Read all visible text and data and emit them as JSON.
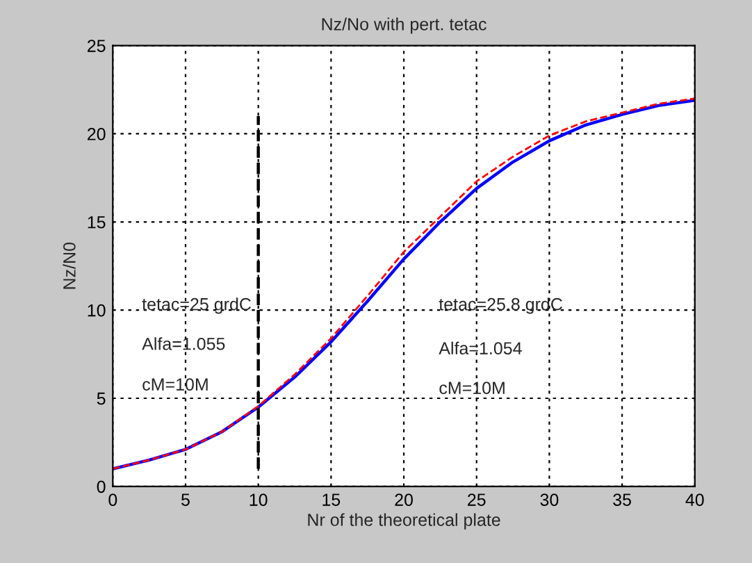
{
  "chart_data": {
    "type": "line",
    "title": "Nz/No with pert. tetac",
    "xlabel": "Nr of the theoretical plate",
    "ylabel": "Nz/N0",
    "xlim": [
      0,
      40
    ],
    "xticks": [
      0,
      5,
      10,
      15,
      20,
      25,
      30,
      35,
      40
    ],
    "ylim": [
      0,
      25
    ],
    "yticks": [
      0,
      5,
      10,
      15,
      20,
      25
    ],
    "grid": true,
    "series": [
      {
        "color": "#0000ff",
        "line_style": "solid",
        "x": [
          0,
          2.5,
          5,
          7.5,
          10,
          12.5,
          15,
          17.5,
          20,
          22.5,
          25,
          27.5,
          30,
          32.5,
          35,
          37.5,
          40
        ],
        "values": [
          1.0,
          1.5,
          2.1,
          3.1,
          4.5,
          6.2,
          8.2,
          10.5,
          12.9,
          15.0,
          16.9,
          18.4,
          19.6,
          20.5,
          21.1,
          21.6,
          21.9
        ]
      },
      {
        "color": "#ff0000",
        "line_style": "dashed",
        "x": [
          0,
          2.5,
          5,
          7.5,
          10,
          12.5,
          15,
          17.5,
          20,
          22.5,
          25,
          27.5,
          30,
          32.5,
          35,
          37.5,
          40
        ],
        "values": [
          1.0,
          1.5,
          2.1,
          3.1,
          4.55,
          6.35,
          8.4,
          10.8,
          13.3,
          15.3,
          17.3,
          18.7,
          19.9,
          20.7,
          21.2,
          21.7,
          22.0
        ]
      },
      {
        "color": "#000000",
        "line_style": "dashed",
        "x": [
          10,
          10
        ],
        "values": [
          1,
          21
        ]
      }
    ],
    "annotations": [
      "tetac=25 grdC",
      "Alfa=1.055",
      "cM=10M",
      "tetac=25.8 grdC",
      "Alfa=1.054",
      "cM=10M"
    ]
  }
}
